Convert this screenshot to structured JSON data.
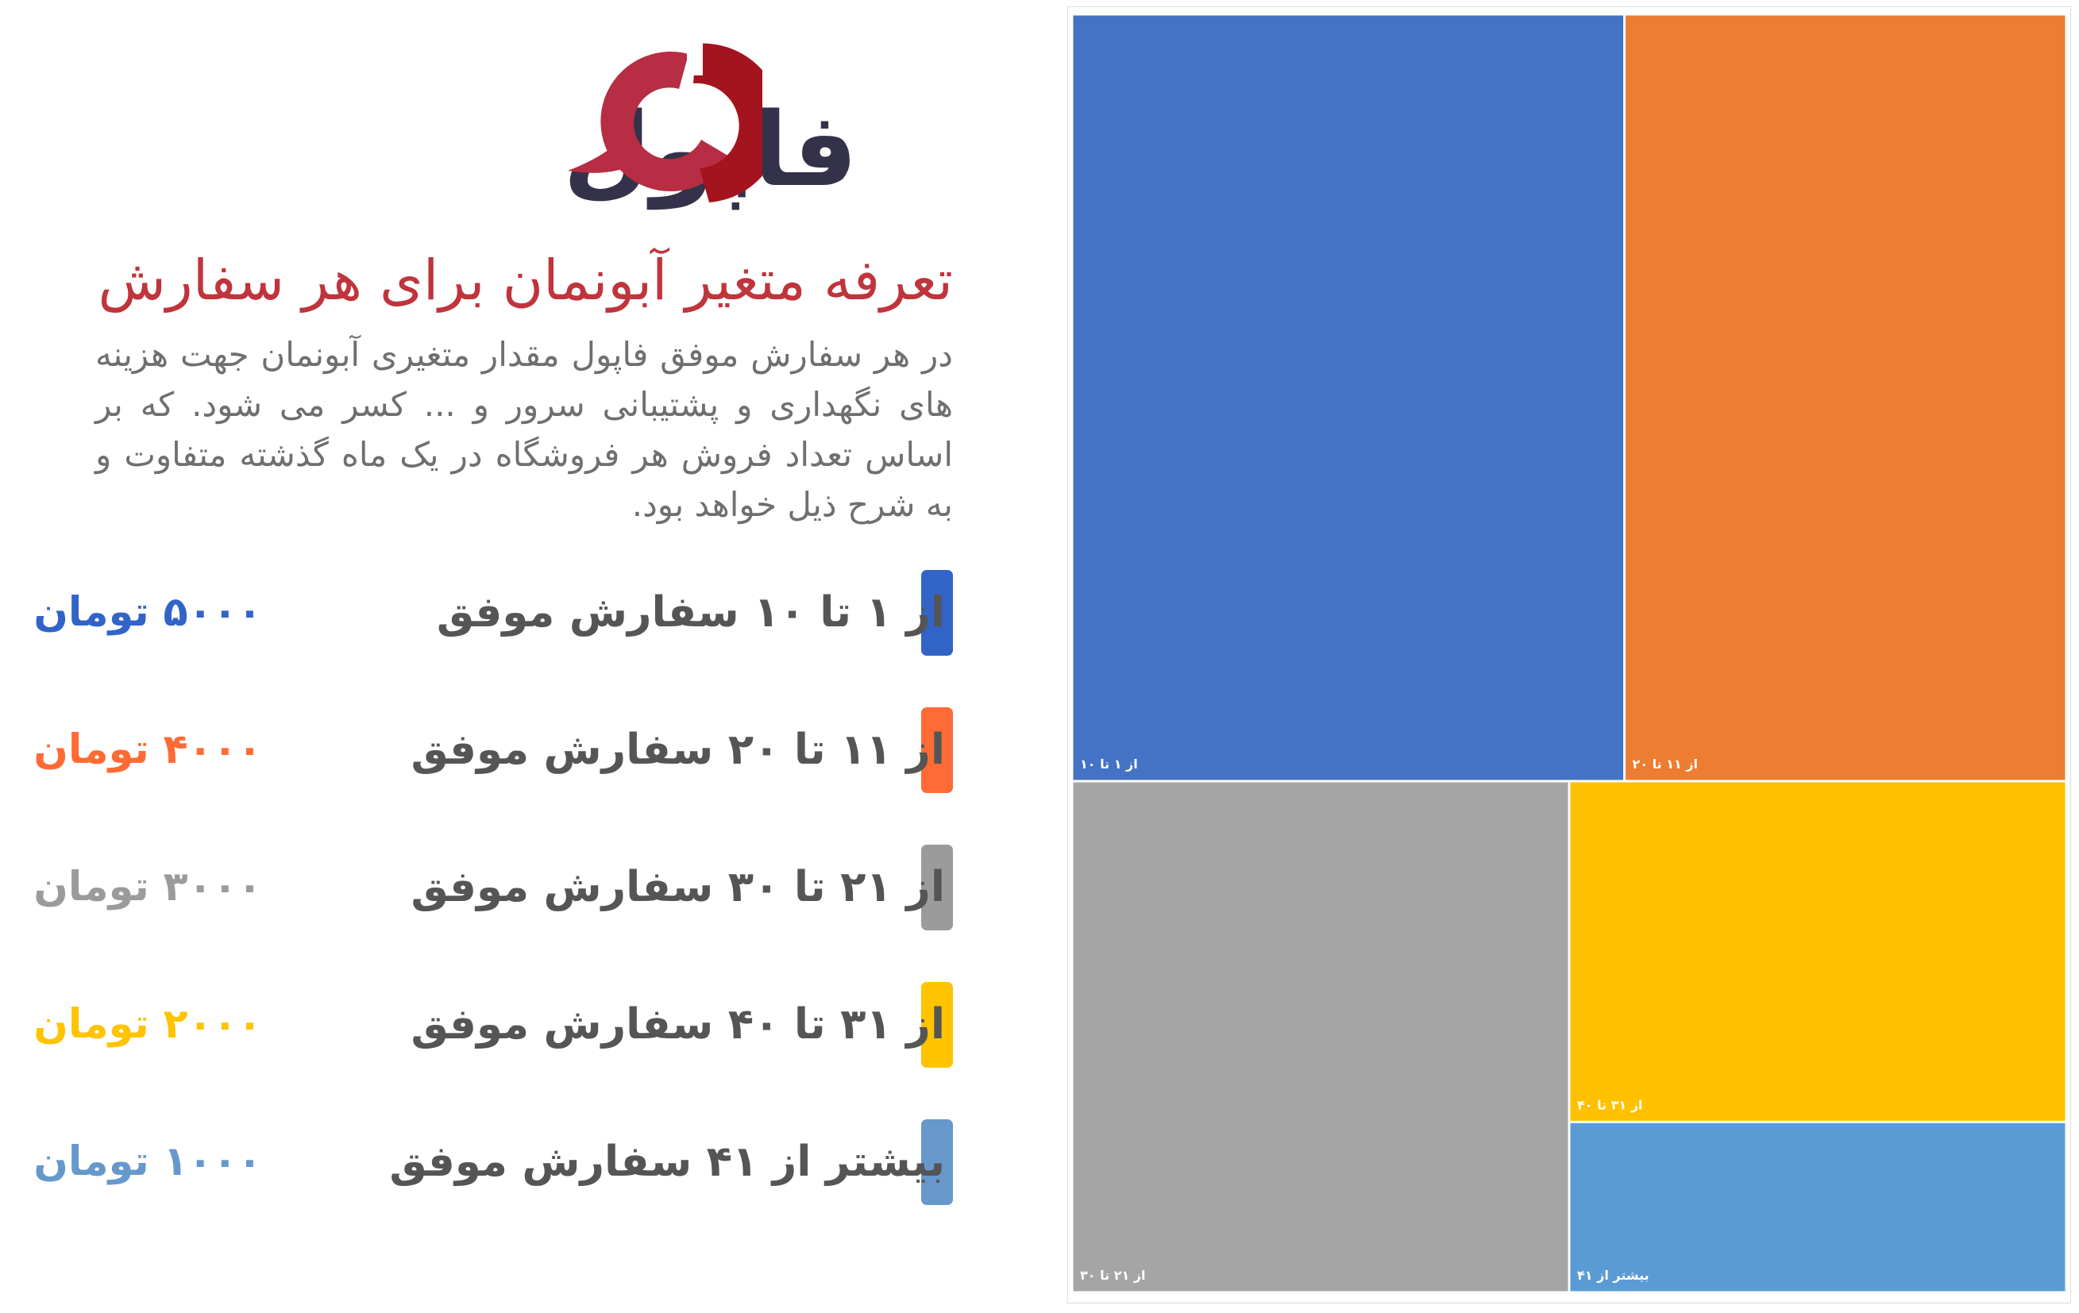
{
  "logo": {
    "text": "فاپول"
  },
  "header": {
    "title": "تعرفه متغیر آبونمان برای هر سفارش",
    "description": "در هر سفارش موفق فاپول مقدار متغیری آبونمان جهت هزینه های نگهداری و پشتیبانی سرور و ... کسر می شود. که بر اساس تعداد فروش هر فروشگاه در یک ماه گذشته متفاوت و به شرح ذیل خواهد بود."
  },
  "tiers": [
    {
      "label": "از ۱ تا ۱۰ سفارش موفق",
      "price": "۵۰۰۰ تومان",
      "color": "#3264c8"
    },
    {
      "label": "از ۱۱ تا ۲۰ سفارش موفق",
      "price": "۴۰۰۰ تومان",
      "color": "#ff6b35"
    },
    {
      "label": "از ۲۱ تا ۳۰ سفارش موفق",
      "price": "۳۰۰۰ تومان",
      "color": "#9b9b9b"
    },
    {
      "label": "از ۳۱ تا ۴۰ سفارش موفق",
      "price": "۲۰۰۰ تومان",
      "color": "#ffc300"
    },
    {
      "label": "بیشتر از ۴۱ سفارش موفق",
      "price": "۱۰۰۰ تومان",
      "color": "#6798cc"
    }
  ],
  "chart_data": {
    "type": "treemap",
    "categories": [
      "از ۱ تا ۱۰",
      "از ۱۱ تا ۲۰",
      "از ۲۱ تا ۳۰",
      "از ۳۱ تا ۴۰",
      "بیشتر از ۴۱"
    ],
    "values": [
      5000,
      4000,
      3000,
      2000,
      1000
    ],
    "colors": [
      "#4472c4",
      "#ed7d31",
      "#a5a5a5",
      "#ffc000",
      "#5b9bd5"
    ]
  }
}
